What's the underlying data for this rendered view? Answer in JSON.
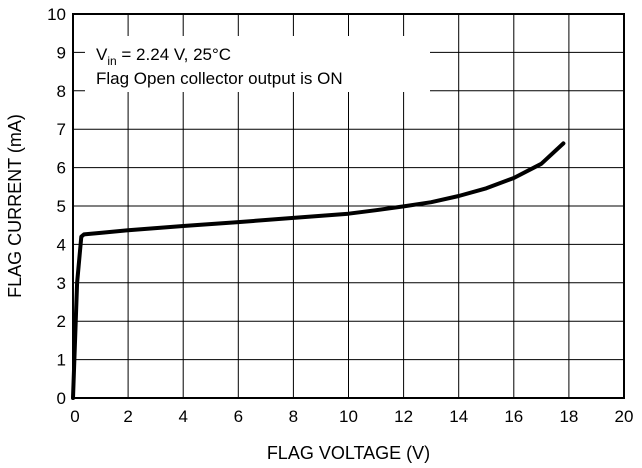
{
  "chart_data": {
    "type": "line",
    "xlabel": "FLAG VOLTAGE (V)",
    "ylabel": "FLAG CURRENT (mA)",
    "xlim": [
      0,
      20
    ],
    "ylim": [
      0,
      10
    ],
    "x_ticks": [
      "0",
      "2",
      "4",
      "6",
      "8",
      "10",
      "12",
      "14",
      "16",
      "18",
      "20"
    ],
    "y_ticks": [
      "0",
      "1",
      "2",
      "3",
      "4",
      "5",
      "6",
      "7",
      "8",
      "9",
      "10"
    ],
    "grid": true,
    "annotation": {
      "line1_v": "V",
      "line1_sub": "in",
      "line1_rest": " = 2.24 V, 25°C",
      "line2": "Flag Open collector output is ON"
    },
    "series": [
      {
        "x": [
          0,
          0.15,
          0.3,
          0.4,
          1,
          2,
          4,
          6,
          8,
          10,
          11,
          12,
          13,
          14,
          15,
          16,
          17,
          17.8
        ],
        "y": [
          0,
          3.0,
          4.2,
          4.26,
          4.3,
          4.37,
          4.48,
          4.58,
          4.69,
          4.8,
          4.89,
          4.99,
          5.1,
          5.26,
          5.46,
          5.73,
          6.1,
          6.63
        ]
      }
    ]
  }
}
